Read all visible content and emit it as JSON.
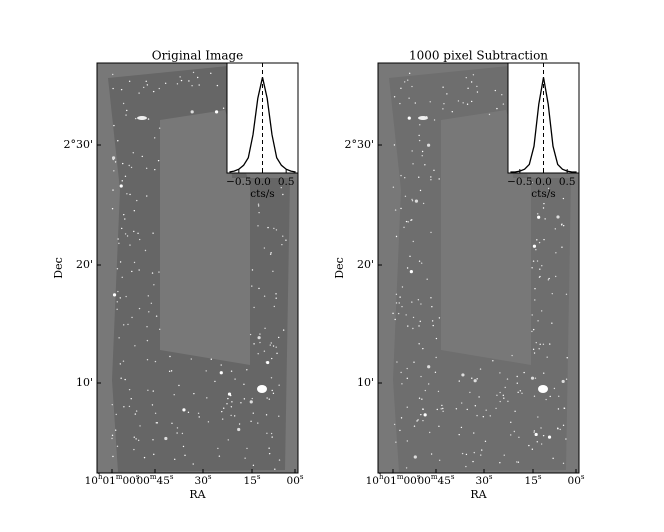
{
  "panels": [
    {
      "title": "Original Image",
      "x_label": "RA",
      "y_label": "Dec",
      "xtick_labels": [
        "10h01m00s",
        "00m45s",
        "30s",
        "15s",
        "00s"
      ],
      "ytick_labels": [
        "2°30'",
        "20'",
        "10'"
      ],
      "inset": {
        "type": "line",
        "x_label": "cts/s",
        "xlim": [
          -0.75,
          0.75
        ],
        "ylim": [
          0,
          1.15
        ],
        "xticks": [
          {
            "value": -0.5,
            "label": "−0.5"
          },
          {
            "value": 0,
            "label": "0.0"
          },
          {
            "value": 0.5,
            "label": "0.5"
          }
        ],
        "vline": 0,
        "color": "#000000",
        "x": [
          -0.7,
          -0.6,
          -0.5,
          -0.4,
          -0.3,
          -0.2,
          -0.1,
          0,
          0.1,
          0.2,
          0.3,
          0.4,
          0.5,
          0.6,
          0.7
        ],
        "values": [
          0.01,
          0.02,
          0.04,
          0.08,
          0.16,
          0.4,
          0.78,
          1.0,
          0.78,
          0.4,
          0.16,
          0.08,
          0.04,
          0.02,
          0.01
        ]
      }
    },
    {
      "title": "1000 pixel Subtraction",
      "x_label": "RA",
      "y_label": "Dec",
      "xtick_labels": [
        "10h01m00s",
        "00m45s",
        "30s",
        "15s",
        "00s"
      ],
      "ytick_labels": [
        "2°30'",
        "20'",
        "10'"
      ],
      "inset": {
        "type": "line",
        "x_label": "cts/s",
        "xlim": [
          -0.75,
          0.75
        ],
        "ylim": [
          0,
          1.15
        ],
        "xticks": [
          {
            "value": -0.5,
            "label": "−0.5"
          },
          {
            "value": 0,
            "label": "0.0"
          },
          {
            "value": 0.5,
            "label": "0.5"
          }
        ],
        "vline": 0,
        "color": "#000000",
        "x": [
          -0.7,
          -0.6,
          -0.5,
          -0.4,
          -0.3,
          -0.2,
          -0.1,
          0,
          0.1,
          0.2,
          0.3,
          0.4,
          0.5,
          0.6,
          0.7
        ],
        "values": [
          0.01,
          0.01,
          0.02,
          0.04,
          0.09,
          0.28,
          0.72,
          1.0,
          0.72,
          0.28,
          0.09,
          0.04,
          0.02,
          0.01,
          0.01
        ]
      }
    }
  ]
}
